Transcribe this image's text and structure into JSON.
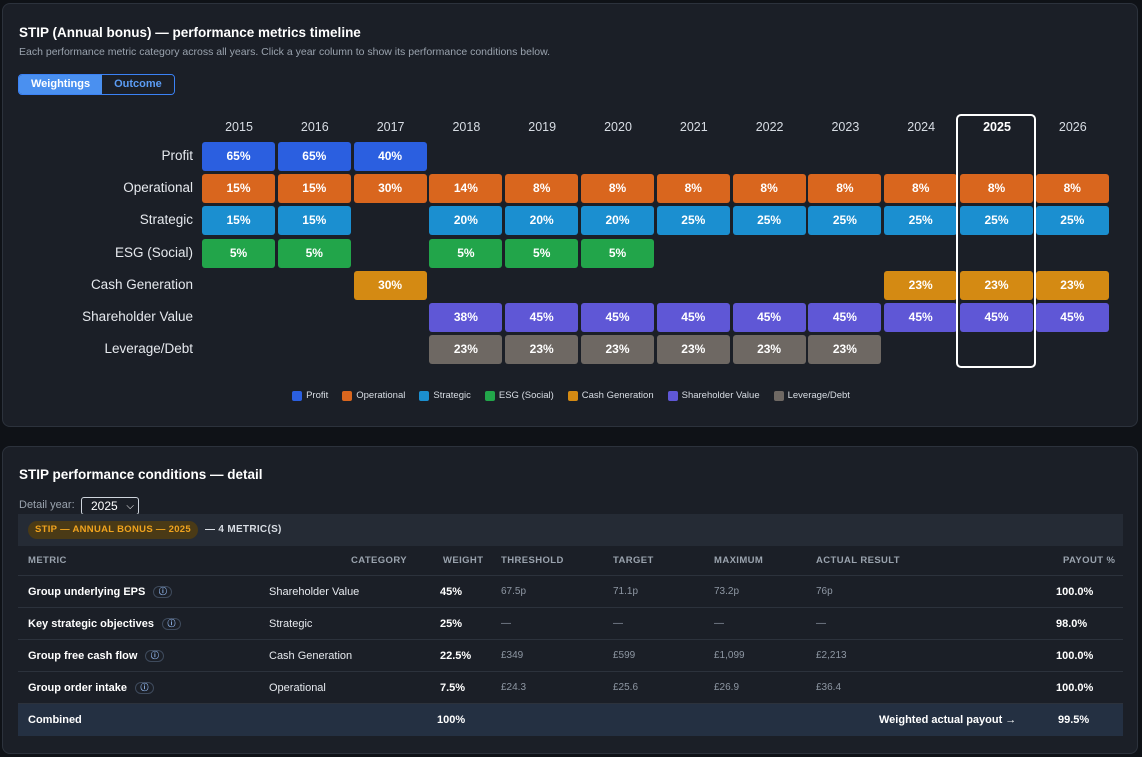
{
  "timeline": {
    "title": "STIP (Annual bonus) — performance metrics timeline",
    "subtitle": "Each performance metric category across all years. Click a year column to show its performance conditions below.",
    "toggle": {
      "weightings": "Weightings",
      "outcome": "Outcome"
    },
    "years": [
      "2015",
      "2016",
      "2017",
      "2018",
      "2019",
      "2020",
      "2021",
      "2022",
      "2023",
      "2024",
      "2025",
      "2026"
    ],
    "selected_year": "2025",
    "metrics": [
      {
        "name": "Profit",
        "color": "#2b5fe0",
        "values": [
          "65%",
          "65%",
          "40%",
          "",
          "",
          "",
          "",
          "",
          "",
          "",
          "",
          ""
        ]
      },
      {
        "name": "Operational",
        "color": "#d9661e",
        "values": [
          "15%",
          "15%",
          "30%",
          "14%",
          "8%",
          "8%",
          "8%",
          "8%",
          "8%",
          "8%",
          "8%",
          "8%"
        ]
      },
      {
        "name": "Strategic",
        "color": "#1b8fd0",
        "values": [
          "15%",
          "15%",
          "",
          "20%",
          "20%",
          "20%",
          "25%",
          "25%",
          "25%",
          "25%",
          "25%",
          "25%"
        ]
      },
      {
        "name": "ESG (Social)",
        "color": "#22a54a",
        "values": [
          "5%",
          "5%",
          "",
          "5%",
          "5%",
          "5%",
          "",
          "",
          "",
          "",
          "",
          ""
        ]
      },
      {
        "name": "Cash Generation",
        "color": "#d48a13",
        "values": [
          "",
          "",
          "30%",
          "",
          "",
          "",
          "",
          "",
          "",
          "23%",
          "23%",
          "23%"
        ]
      },
      {
        "name": "Shareholder Value",
        "color": "#5f57d6",
        "values": [
          "",
          "",
          "",
          "38%",
          "45%",
          "45%",
          "45%",
          "45%",
          "45%",
          "45%",
          "45%",
          "45%"
        ]
      },
      {
        "name": "Leverage/Debt",
        "color": "#6e6863",
        "values": [
          "",
          "",
          "",
          "23%",
          "23%",
          "23%",
          "23%",
          "23%",
          "23%",
          "",
          "",
          ""
        ]
      }
    ],
    "legend": [
      "Profit",
      "Operational",
      "Strategic",
      "ESG (Social)",
      "Cash Generation",
      "Shareholder Value",
      "Leverage/Debt"
    ]
  },
  "detail": {
    "title": "STIP performance conditions — detail",
    "year_label": "Detail year:",
    "year_value": "2025",
    "band_badge": "STIP — ANNUAL BONUS — 2025",
    "band_rest": "— 4 METRIC(S)",
    "headers": {
      "metric": "METRIC",
      "category": "CATEGORY",
      "weight": "WEIGHT",
      "threshold": "THRESHOLD",
      "target": "TARGET",
      "maximum": "MAXIMUM",
      "actual": "ACTUAL RESULT",
      "payout": "PAYOUT %"
    },
    "info_glyph": "ⓘ",
    "rows": [
      {
        "metric": "Group underlying EPS",
        "category": "Shareholder Value",
        "weight": "45%",
        "threshold": "67.5p",
        "target": "71.1p",
        "maximum": "73.2p",
        "actual": "76p",
        "payout": "100.0%"
      },
      {
        "metric": "Key strategic objectives",
        "category": "Strategic",
        "weight": "25%",
        "threshold": "—",
        "target": "—",
        "maximum": "—",
        "actual": "—",
        "payout": "98.0%"
      },
      {
        "metric": "Group free cash flow",
        "category": "Cash Generation",
        "weight": "22.5%",
        "threshold": "£349",
        "target": "£599",
        "maximum": "£1,099",
        "actual": "£2,213",
        "payout": "100.0%"
      },
      {
        "metric": "Group order intake",
        "category": "Operational",
        "weight": "7.5%",
        "threshold": "£24.3",
        "target": "£25.6",
        "maximum": "£26.9",
        "actual": "£36.4",
        "payout": "100.0%"
      }
    ],
    "combined": {
      "label": "Combined",
      "weight": "100%",
      "payout_label": "Weighted actual payout →",
      "payout": "99.5%"
    }
  }
}
